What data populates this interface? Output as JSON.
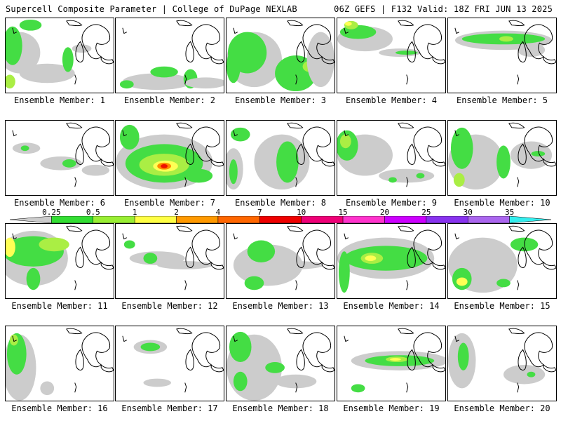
{
  "header": {
    "left": "Supercell Composite Parameter | College of DuPage NEXLAB",
    "right": "06Z GEFS | F132 Valid: 18Z FRI JUN 13 2025"
  },
  "members": [
    "Ensemble Member: 1",
    "Ensemble Member: 2",
    "Ensemble Member: 3",
    "Ensemble Member: 4",
    "Ensemble Member: 5",
    "Ensemble Member: 6",
    "Ensemble Member: 7",
    "Ensemble Member: 8",
    "Ensemble Member: 9",
    "Ensemble Member: 10",
    "Ensemble Member: 11",
    "Ensemble Member: 12",
    "Ensemble Member: 13",
    "Ensemble Member: 14",
    "Ensemble Member: 15",
    "Ensemble Member: 16",
    "Ensemble Member: 17",
    "Ensemble Member: 18",
    "Ensemble Member: 19",
    "Ensemble Member: 20"
  ],
  "colorbar": {
    "ticks": [
      "0.25",
      "0.5",
      "1",
      "2",
      "4",
      "7",
      "10",
      "15",
      "20",
      "25",
      "30",
      "35"
    ],
    "colors": [
      "#cccccc",
      "#33dd33",
      "#99ee33",
      "#ffff44",
      "#ff9900",
      "#ff6600",
      "#ee0000",
      "#ee0077",
      "#ff33cc",
      "#cc00ff",
      "#8833ee",
      "#aa66ee",
      "#33eeee"
    ]
  },
  "field_colors": {
    "gray": "#cccccc",
    "green": "#44dd44",
    "light_green": "#aaee44",
    "yellow": "#ffff55",
    "orange": "#ff8800",
    "red": "#ee1100"
  }
}
